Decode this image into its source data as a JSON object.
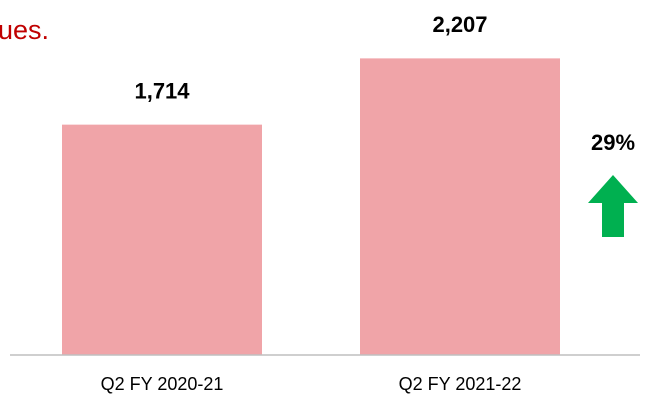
{
  "chart_data": {
    "type": "bar",
    "title": "ues.",
    "categories": [
      "Q2 FY 2020-21",
      "Q2 FY 2021-22"
    ],
    "values": [
      1714,
      2207
    ],
    "value_labels": [
      "1,714",
      "2,207"
    ],
    "color": "#f0a4a8",
    "ylim": [
      0,
      2500
    ],
    "annotation": "29%"
  }
}
